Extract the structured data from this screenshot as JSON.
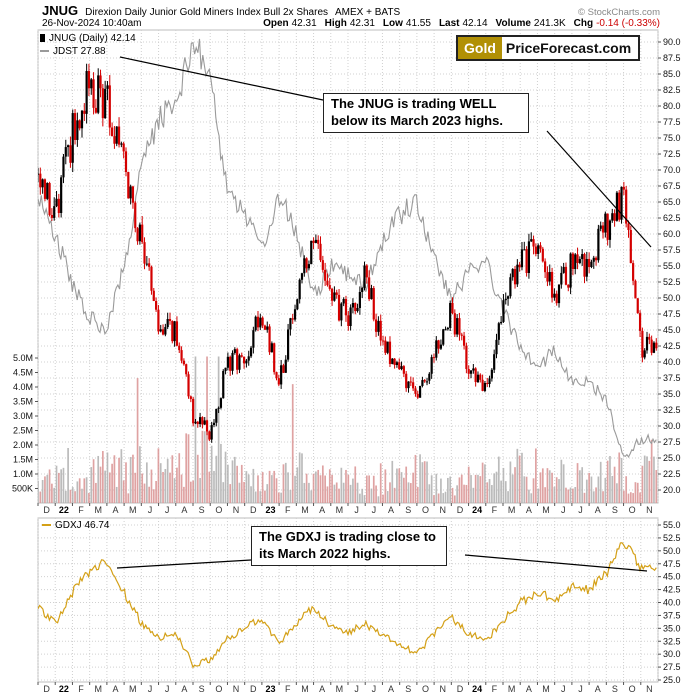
{
  "header": {
    "symbol": "JNUG",
    "title": "Direxion Daily Junior Gold Miners Index Bull 2x Shares",
    "exchange": "AMEX + BATS",
    "copyright": "© StockCharts.com",
    "datetime": "26-Nov-2024 10:40am",
    "quote": [
      {
        "label": "Open",
        "value": "42.31"
      },
      {
        "label": "High",
        "value": "42.31"
      },
      {
        "label": "Low",
        "value": "41.55"
      },
      {
        "label": "Last",
        "value": "42.14"
      },
      {
        "label": "Volume",
        "value": "241.3K"
      },
      {
        "label": "Chg",
        "value": "-0.14 (-0.33%)",
        "color": "#cc0000"
      }
    ]
  },
  "logo": {
    "part1": "Gold",
    "part2": "PriceForecast.com",
    "bg": "#b19005"
  },
  "main_chart": {
    "legend_jnug": "JNUG (Daily) 42.14",
    "legend_jdst": "JDST 27.88"
  },
  "lower_chart": {
    "legend": "GDXJ 46.74"
  },
  "chart_data": [
    {
      "type": "candlestick",
      "title": "JNUG daily candles with JDST line overlay and volume, Dec-2021 to 26-Nov-2024",
      "annotation": "The JNUG is trading WELL below its March 2023 highs.",
      "x_labels": [
        "D",
        "22",
        "F",
        "M",
        "A",
        "M",
        "J",
        "J",
        "A",
        "S",
        "O",
        "N",
        "D",
        "23",
        "F",
        "M",
        "A",
        "M",
        "J",
        "J",
        "A",
        "S",
        "O",
        "N",
        "D",
        "24",
        "F",
        "M",
        "A",
        "M",
        "J",
        "J",
        "A",
        "S",
        "O",
        "N"
      ],
      "y_axis_right": {
        "ticks": [
          "90.0",
          "87.5",
          "85.0",
          "82.5",
          "80.0",
          "77.5",
          "75.0",
          "72.5",
          "70.0",
          "67.5",
          "65.0",
          "62.5",
          "60.0",
          "57.5",
          "55.0",
          "52.5",
          "50.0",
          "47.5",
          "45.0",
          "42.5",
          "40.0",
          "37.5",
          "35.0",
          "32.5",
          "30.0",
          "27.5",
          "25.0",
          "22.5",
          "20.0"
        ],
        "range": [
          20,
          90
        ]
      },
      "y_axis_left_volume": {
        "tick_labels": [
          "5.0M",
          "4.5M",
          "4.0M",
          "3.5M",
          "3.0M",
          "2.5M",
          "2.0M",
          "1.5M",
          "1.0M",
          "500K"
        ],
        "tick_values_millions": [
          5,
          4.5,
          4,
          3.5,
          3,
          2.5,
          2,
          1.5,
          1,
          0.5
        ]
      },
      "series": [
        {
          "name": "JNUG",
          "type": "candlestick",
          "color_up": "#000000",
          "color_down": "#d40000",
          "last": 42.14,
          "monthly_closes": [
            68,
            63,
            76,
            84,
            80,
            70,
            58,
            46,
            45,
            31,
            29,
            40,
            41,
            48,
            37,
            49,
            60,
            50,
            47,
            53,
            43,
            39,
            34,
            42,
            48,
            39,
            36,
            49,
            55,
            58,
            50,
            55,
            55,
            61,
            66,
            42.14
          ]
        },
        {
          "name": "JDST",
          "type": "line",
          "color": "#9a9a9a",
          "last": 27.88,
          "monthly_closes": [
            66,
            60,
            52,
            47,
            45,
            55,
            70,
            78,
            80,
            90,
            85,
            66,
            63,
            58,
            66,
            60,
            50,
            55,
            54,
            52,
            59,
            63,
            65,
            56,
            50,
            54,
            56,
            48,
            42,
            39,
            42,
            37,
            37,
            34,
            25,
            27.88
          ]
        },
        {
          "name": "Volume",
          "type": "column",
          "colors": {
            "down": "#dc9898",
            "up": "#b4b4b4"
          },
          "last": "241.3K",
          "monthly_avg_millions": [
            0.7,
            0.8,
            0.9,
            1.1,
            1.2,
            1.2,
            1.4,
            1.2,
            1.1,
            1.8,
            1.6,
            1.2,
            0.9,
            0.9,
            1.0,
            1.3,
            1.0,
            0.9,
            0.9,
            0.8,
            0.9,
            1.0,
            1.1,
            0.9,
            0.8,
            0.9,
            1.0,
            1.1,
            1.3,
            1.1,
            0.9,
            1.0,
            0.9,
            1.0,
            1.3,
            1.1
          ]
        }
      ]
    },
    {
      "type": "line",
      "title": "GDXJ daily close, Dec-2021 to 26-Nov-2024",
      "annotation": "The GDXJ is trading close to its March 2022 highs.",
      "x_labels": [
        "D",
        "22",
        "F",
        "M",
        "A",
        "M",
        "J",
        "J",
        "A",
        "S",
        "O",
        "N",
        "D",
        "23",
        "F",
        "M",
        "A",
        "M",
        "J",
        "J",
        "A",
        "S",
        "O",
        "N",
        "D",
        "24",
        "F",
        "M",
        "A",
        "M",
        "J",
        "J",
        "A",
        "S",
        "O",
        "N"
      ],
      "y_axis_right": {
        "ticks": [
          "55.0",
          "52.5",
          "50.0",
          "47.5",
          "45.0",
          "42.5",
          "40.0",
          "37.5",
          "35.0",
          "32.5",
          "30.0",
          "27.5",
          "25.0"
        ],
        "range": [
          25,
          55
        ]
      },
      "series": [
        {
          "name": "GDXJ",
          "type": "line",
          "color": "#d4a017",
          "last": 46.74,
          "monthly_closes": [
            39,
            36,
            42,
            46,
            48,
            42,
            36,
            33,
            34,
            28,
            29,
            33,
            35,
            37,
            32,
            36,
            39,
            35.5,
            34,
            36,
            33.5,
            32,
            30,
            34,
            37,
            34,
            32.5,
            36.5,
            40,
            42,
            40.5,
            43,
            42.5,
            45.5,
            52,
            46.74
          ]
        }
      ]
    }
  ]
}
